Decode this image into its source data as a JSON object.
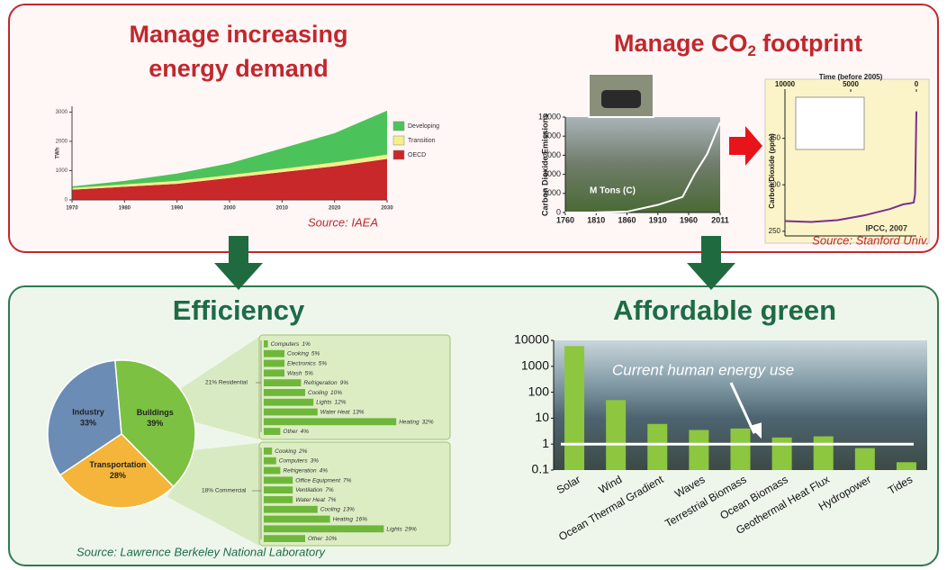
{
  "top_panel": {
    "heading_left": [
      "Manage increasing",
      "energy demand"
    ],
    "heading_right": {
      "text": "Manage CO",
      "subscript": "2",
      "tail": "footprint"
    }
  },
  "bottom_panel": {
    "heading_left": "Efficiency",
    "heading_right": "Affordable green",
    "source": "Source: Lawrence Berkeley National Laboratory"
  },
  "chart_data": [
    {
      "type": "area",
      "stacked": true,
      "y_label": "TWh",
      "x": [
        1970,
        1980,
        1990,
        2000,
        2010,
        2020,
        2030
      ],
      "series": [
        {
          "name": "OECD",
          "color": "#c8282a",
          "values": [
            350,
            450,
            550,
            750,
            950,
            1150,
            1400
          ]
        },
        {
          "name": "Transition",
          "color": "#f3ef8a",
          "values": [
            60,
            80,
            100,
            100,
            110,
            130,
            150
          ]
        },
        {
          "name": "Developing",
          "color": "#4cc35a",
          "values": [
            50,
            120,
            250,
            400,
            700,
            1000,
            1500
          ]
        }
      ],
      "xlim": [
        1970,
        2030
      ],
      "xticks": [
        1970,
        1980,
        1990,
        2000,
        2010,
        2020,
        2030
      ],
      "ylim": [
        0,
        3200
      ],
      "yticks": [
        0,
        1000,
        2000,
        3000
      ],
      "source": "Source: IAEA"
    },
    {
      "type": "line",
      "y_label": "Carbon Dioxide Emissions",
      "annotation": "M Tons (C)",
      "x": [
        1760,
        1810,
        1860,
        1910,
        1950,
        1970,
        1990,
        2011
      ],
      "values": [
        3,
        10,
        90,
        800,
        1630,
        4076,
        6143,
        9449
      ],
      "color": "#ffffff",
      "xlim": [
        1760,
        2011
      ],
      "xticks": [
        1760,
        1810,
        1860,
        1910,
        1960,
        2011
      ],
      "ylim": [
        0,
        10000
      ],
      "yticks": [
        0,
        2000,
        4000,
        6000,
        8000,
        10000
      ]
    },
    {
      "type": "line",
      "title": "Time (before 2005)",
      "y_label": "Carbon Dioxide (ppm)",
      "annotation": "IPCC, 2007",
      "x": [
        10000,
        8000,
        6000,
        4000,
        2000,
        1000,
        500,
        200,
        100,
        0
      ],
      "values": [
        261,
        260,
        262,
        267,
        274,
        279,
        280,
        281,
        290,
        379
      ],
      "color": "#7b2f8f",
      "xlim": [
        10000,
        0
      ],
      "xticks": [
        10000,
        5000,
        0
      ],
      "ylim": [
        245,
        400
      ],
      "yticks": [
        250,
        300,
        350
      ],
      "source": "Source: Stanford Univ."
    },
    {
      "type": "pie",
      "categories": [
        "Industry",
        "Buildings",
        "Transportation"
      ],
      "values": [
        33,
        39,
        28
      ],
      "value_labels": [
        "33%",
        "39%",
        "28%"
      ],
      "colors": [
        "#6b8cb5",
        "#7cc142",
        "#f4b53a"
      ]
    },
    {
      "type": "hbar",
      "title": "21% Residential",
      "categories": [
        "Computers",
        "Cooking",
        "Electronics",
        "Wash",
        "Refrigeration",
        "Cooling",
        "Lights",
        "Water Heat",
        "Heating",
        "Other"
      ],
      "values": [
        1,
        5,
        5,
        5,
        9,
        10,
        12,
        13,
        32,
        4
      ],
      "value_labels": [
        "1%",
        "5%",
        "5%",
        "5%",
        "9%",
        "10%",
        "12%",
        "13%",
        "32%",
        "4%"
      ],
      "color": "#6fb73a"
    },
    {
      "type": "hbar",
      "title": "18% Commercial",
      "categories": [
        "Cooking",
        "Computers",
        "Refrigeration",
        "Office Equipment",
        "Ventilation",
        "Water Heat",
        "Cooling",
        "Heating",
        "Lights",
        "Other"
      ],
      "values": [
        2,
        3,
        4,
        7,
        7,
        7,
        13,
        16,
        29,
        10
      ],
      "value_labels": [
        "2%",
        "3%",
        "4%",
        "7%",
        "7%",
        "7%",
        "13%",
        "16%",
        "29%",
        "10%"
      ],
      "color": "#6fb73a"
    },
    {
      "type": "bar",
      "log_scale": true,
      "categories": [
        "Solar",
        "Wind",
        "Ocean Thermal Gradient",
        "Waves",
        "Terrestrial Biomass",
        "Ocean Biomass",
        "Geothermal Heat Flux",
        "Hydropower",
        "Tides"
      ],
      "values": [
        6000,
        50,
        6,
        3.5,
        4,
        1.8,
        2,
        0.7,
        0.2
      ],
      "color": "#8dc63f",
      "ylim": [
        0.1,
        10000
      ],
      "yticks": [
        10000,
        1000,
        100,
        10,
        1,
        0.1
      ],
      "reference_line": {
        "value": 1,
        "label": "Current human energy use"
      }
    }
  ]
}
